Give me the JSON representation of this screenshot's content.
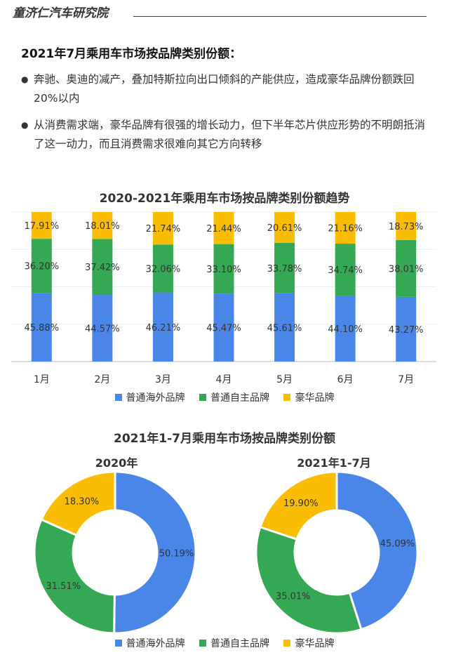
{
  "header": {
    "brand": "童济仁汽车研究院"
  },
  "heading": "2021年7月乘用车市场按品牌类别份额：",
  "bullets": [
    "奔驰、奥迪的减产，叠加特斯拉向出口倾斜的产能供应，造成豪华品牌份额跌回20%以内",
    "从消费需求端，豪华品牌有很强的增长动力，但下半年芯片供应形势的不明朗抵消了这一动力，而且消费需求很难向其它方向转移"
  ],
  "bullet_marker": "●",
  "colors": {
    "overseas": "#4a86e8",
    "domestic": "#34a853",
    "luxury": "#fbbc04"
  },
  "legend": [
    "普通海外品牌",
    "普通自主品牌",
    "豪华品牌"
  ],
  "chart_data": [
    {
      "type": "bar",
      "stacked": true,
      "title": "2020-2021年乘用车市场按品牌类别份额趋势",
      "categories": [
        "1月",
        "2月",
        "3月",
        "4月",
        "5月",
        "6月",
        "7月"
      ],
      "series": [
        {
          "name": "普通海外品牌",
          "values": [
            45.88,
            44.57,
            46.21,
            45.47,
            45.61,
            44.1,
            43.27
          ],
          "labels": [
            "45.88%",
            "44.57%",
            "46.21%",
            "45.47%",
            "45.61%",
            "44.10%",
            "43.27%"
          ]
        },
        {
          "name": "普通自主品牌",
          "values": [
            36.2,
            37.42,
            32.06,
            33.1,
            33.78,
            34.74,
            38.01
          ],
          "labels": [
            "36.20%",
            "37.42%",
            "32.06%",
            "33.10%",
            "33.78%",
            "34.74%",
            "38.01%"
          ]
        },
        {
          "name": "豪华品牌",
          "values": [
            17.91,
            18.01,
            21.74,
            21.44,
            20.61,
            21.16,
            18.73
          ],
          "labels": [
            "17.91%",
            "18.01%",
            "21.74%",
            "21.44%",
            "20.61%",
            "21.16%",
            "18.73%"
          ]
        }
      ],
      "ylim": [
        0,
        100
      ],
      "grid": true,
      "legend_position": "bottom"
    },
    {
      "type": "pie",
      "donut": true,
      "title": "2021年1-7月乘用车市场按品牌类别份额",
      "subtitle": "2020年",
      "labels": [
        "普通海外品牌",
        "普通自主品牌",
        "豪华品牌"
      ],
      "values": [
        50.19,
        31.51,
        18.3
      ],
      "value_labels": [
        "50.19%",
        "31.51%",
        "18.30%"
      ]
    },
    {
      "type": "pie",
      "donut": true,
      "subtitle": "2021年1-7月",
      "labels": [
        "普通海外品牌",
        "普通自主品牌",
        "豪华品牌"
      ],
      "values": [
        45.09,
        35.01,
        19.9
      ],
      "value_labels": [
        "45.09%",
        "35.01%",
        "19.90%"
      ]
    }
  ]
}
